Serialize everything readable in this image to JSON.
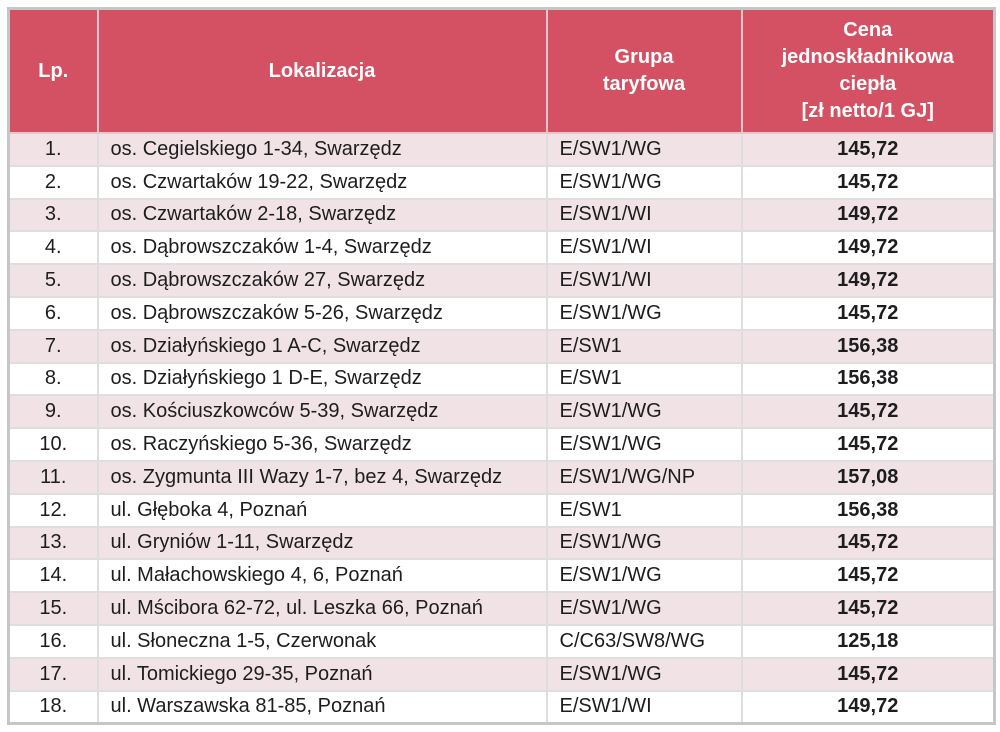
{
  "table": {
    "header": {
      "lp": "Lp.",
      "lokalizacja": "Lokalizacja",
      "grupa": "Grupa\ntaryfowa",
      "cena": "Cena\njednoskładnikowa\nciepła\n[zł netto/1 GJ]"
    },
    "rows": [
      {
        "lp": "1.",
        "lokalizacja": "os. Cegielskiego 1-34, Swarzędz",
        "grupa": "E/SW1/WG",
        "cena": "145,72"
      },
      {
        "lp": "2.",
        "lokalizacja": "os. Czwartaków 19-22, Swarzędz",
        "grupa": "E/SW1/WG",
        "cena": "145,72"
      },
      {
        "lp": "3.",
        "lokalizacja": "os. Czwartaków 2-18, Swarzędz",
        "grupa": "E/SW1/WI",
        "cena": "149,72"
      },
      {
        "lp": "4.",
        "lokalizacja": "os. Dąbrowszczaków 1-4, Swarzędz",
        "grupa": "E/SW1/WI",
        "cena": "149,72"
      },
      {
        "lp": "5.",
        "lokalizacja": "os. Dąbrowszczaków 27, Swarzędz",
        "grupa": "E/SW1/WI",
        "cena": "149,72"
      },
      {
        "lp": "6.",
        "lokalizacja": "os. Dąbrowszczaków 5-26, Swarzędz",
        "grupa": "E/SW1/WG",
        "cena": "145,72"
      },
      {
        "lp": "7.",
        "lokalizacja": "os. Działyńskiego 1 A-C, Swarzędz",
        "grupa": "E/SW1",
        "cena": "156,38"
      },
      {
        "lp": "8.",
        "lokalizacja": "os. Działyńskiego 1 D-E, Swarzędz",
        "grupa": "E/SW1",
        "cena": "156,38"
      },
      {
        "lp": "9.",
        "lokalizacja": "os. Kościuszkowców 5-39, Swarzędz",
        "grupa": "E/SW1/WG",
        "cena": "145,72"
      },
      {
        "lp": "10.",
        "lokalizacja": "os. Raczyńskiego 5-36, Swarzędz",
        "grupa": "E/SW1/WG",
        "cena": "145,72"
      },
      {
        "lp": "11.",
        "lokalizacja": "os. Zygmunta III Wazy 1-7, bez 4, Swarzędz",
        "grupa": "E/SW1/WG/NP",
        "cena": "157,08"
      },
      {
        "lp": "12.",
        "lokalizacja": "ul. Głęboka 4, Poznań",
        "grupa": "E/SW1",
        "cena": "156,38"
      },
      {
        "lp": "13.",
        "lokalizacja": "ul. Gryniów 1-11, Swarzędz",
        "grupa": "E/SW1/WG",
        "cena": "145,72"
      },
      {
        "lp": "14.",
        "lokalizacja": "ul. Małachowskiego 4, 6, Poznań",
        "grupa": "E/SW1/WG",
        "cena": "145,72"
      },
      {
        "lp": "15.",
        "lokalizacja": "ul. Mścibora 62-72, ul. Leszka 66, Poznań",
        "grupa": "E/SW1/WG",
        "cena": "145,72"
      },
      {
        "lp": "16.",
        "lokalizacja": "ul. Słoneczna 1-5, Czerwonak",
        "grupa": "C/C63/SW8/WG",
        "cena": "125,18"
      },
      {
        "lp": "17.",
        "lokalizacja": "ul. Tomickiego 29-35, Poznań",
        "grupa": "E/SW1/WG",
        "cena": "145,72"
      },
      {
        "lp": "18.",
        "lokalizacja": "ul. Warszawska 81-85, Poznań",
        "grupa": "E/SW1/WI",
        "cena": "149,72"
      }
    ],
    "colors": {
      "header_bg": "#d35162",
      "header_text": "#ffffff",
      "row_bg": "#ffffff",
      "row_alt_bg": "#f1e3e5",
      "border_outer": "#c6c6c6",
      "border_inner": "#dedede",
      "header_divider": "#e9c4ca",
      "text": "#1d1d1f"
    }
  }
}
